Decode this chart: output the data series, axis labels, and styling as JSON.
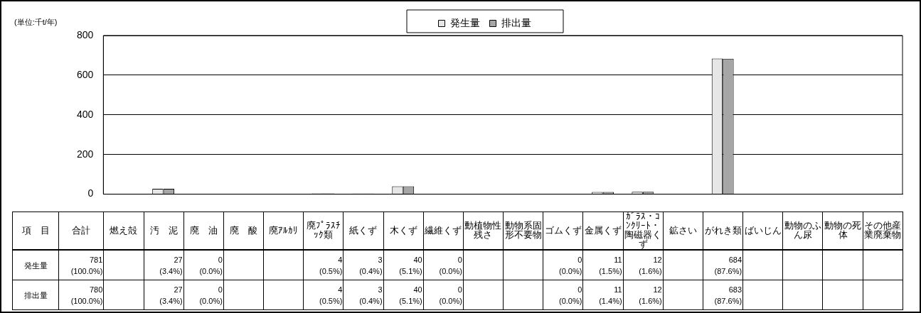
{
  "chart_data": {
    "type": "bar",
    "ylabel": "(単位:千t/年)",
    "categories": [
      "燃え殻",
      "汚　泥",
      "廃　油",
      "廃　酸",
      "廃ｱﾙｶﾘ",
      "廃ﾌﾟﾗｽﾁｯｸ類",
      "紙くず",
      "木くず",
      "繊維くず",
      "動植物性残さ",
      "動物系固形不要物",
      "ゴムくず",
      "金属くず",
      "ｶﾞﾗｽ・ｺﾝｸﾘｰﾄ・陶磁器くず",
      "鉱さい",
      "がれき類",
      "ばいじん",
      "動物のふん尿",
      "動物の死体",
      "その他産業廃棄物"
    ],
    "series": [
      {
        "name": "発生量",
        "color": "#e6e6e6",
        "values": [
          null,
          27,
          0,
          null,
          null,
          4,
          3,
          40,
          0,
          null,
          null,
          0,
          11,
          12,
          null,
          684,
          null,
          null,
          null,
          null
        ],
        "value_labels": [
          null,
          "27\n(3.4%)",
          "0\n(0.0%)",
          null,
          null,
          "4\n(0.5%)",
          "3\n(0.4%)",
          "40\n(5.1%)",
          "0\n(0.0%)",
          null,
          null,
          "0\n(0.0%)",
          "11\n(1.5%)",
          "12\n(1.6%)",
          null,
          "684\n(87.6%)",
          null,
          null,
          null,
          null
        ]
      },
      {
        "name": "排出量",
        "color": "#a6a6a6",
        "values": [
          null,
          27,
          0,
          null,
          null,
          4,
          3,
          40,
          0,
          null,
          null,
          0,
          11,
          12,
          null,
          683,
          null,
          null,
          null,
          null
        ],
        "value_labels": [
          null,
          "27\n(3.4%)",
          "0\n(0.0%)",
          null,
          null,
          "4\n(0.5%)",
          "3\n(0.4%)",
          "40\n(5.1%)",
          "0\n(0.0%)",
          null,
          null,
          "0\n(0.0%)",
          "11\n(1.4%)",
          "12\n(1.6%)",
          null,
          "683\n(87.6%)",
          null,
          null,
          null,
          null
        ]
      }
    ],
    "annotations": [
      "項　目",
      "合計",
      "781\n(100.0%)",
      "780\n(100.0%)"
    ],
    "ylim": [
      0,
      800
    ],
    "yticks": [
      0,
      200,
      400,
      600,
      800
    ],
    "grid": "y",
    "legend": "top",
    "tick_labels": "y"
  }
}
